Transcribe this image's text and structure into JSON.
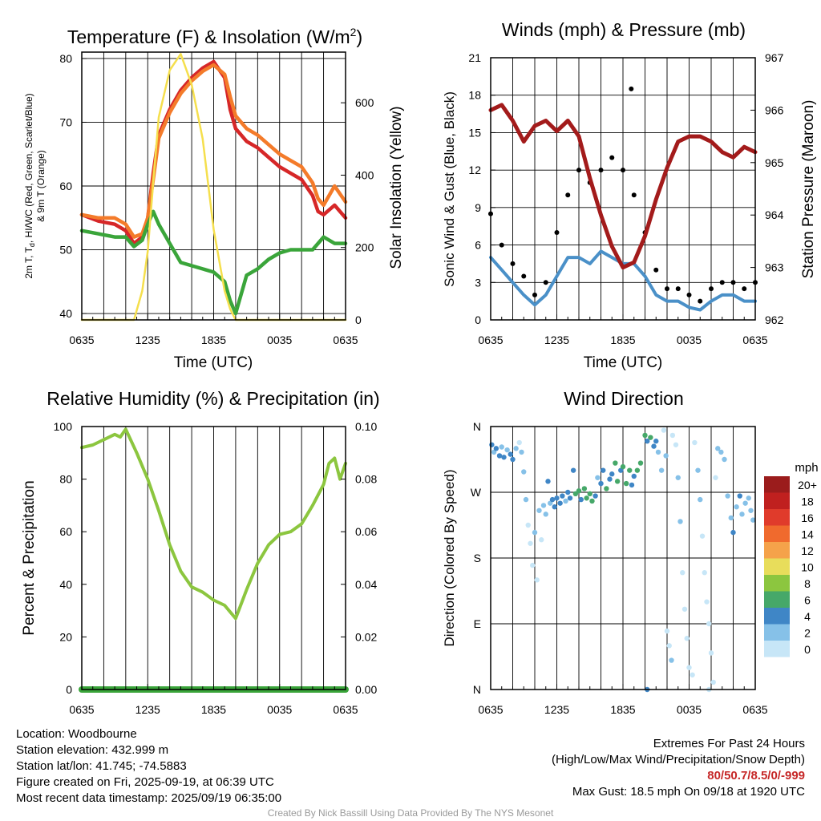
{
  "chart_data": [
    {
      "type": "line",
      "title": "Temperature (F) & Insolation (W/m²)",
      "xlabel": "Time (UTC)",
      "ylabel_left_line1": "2m T, T_d, HI/WC (Red, Green, Scarlet/Blue)",
      "ylabel_left_line2": "& 9m T (Orange)",
      "ylabel_right": "Solar Insolation (Yellow)",
      "x_ticks": [
        "0635",
        "1235",
        "1835",
        "0035",
        "0635"
      ],
      "ylim": [
        39,
        81
      ],
      "y_ticks": [
        40,
        50,
        60,
        70,
        80
      ],
      "y2lim": [
        0,
        740
      ],
      "y2_ticks": [
        0,
        200,
        400,
        600
      ],
      "x_hours": [
        0,
        1.5,
        3,
        4,
        4.75,
        5.5,
        6,
        6.5,
        7,
        8,
        9,
        10,
        11,
        12,
        13,
        13.5,
        14,
        15,
        16,
        17,
        18,
        19,
        20,
        21,
        21.5,
        22,
        23,
        24
      ],
      "series": [
        {
          "name": "2m T",
          "color": "#d62728",
          "values": [
            55.5,
            54.5,
            54,
            53,
            51,
            52,
            55,
            62,
            68,
            72,
            75,
            77,
            78.5,
            79.5,
            77,
            72,
            69,
            67,
            66,
            64.5,
            63,
            62,
            61,
            58.5,
            56,
            55.5,
            57,
            55
          ]
        },
        {
          "name": "9m T",
          "color": "#f47b2a",
          "values": [
            55.5,
            55,
            55,
            54,
            52,
            52.5,
            55,
            61,
            67.5,
            71.5,
            74.5,
            76.5,
            78,
            79,
            77.5,
            74,
            71,
            69,
            68,
            66.5,
            65,
            64,
            63,
            60.5,
            58,
            57,
            60,
            57.5
          ]
        },
        {
          "name": "T_d",
          "color": "#3aa53a",
          "values": [
            53,
            52.5,
            52,
            52,
            50.5,
            51.5,
            54,
            56,
            54,
            51,
            48,
            47.5,
            47,
            46.5,
            45,
            42,
            40,
            46,
            47,
            48.5,
            49.5,
            50,
            50,
            50,
            51,
            52,
            51,
            51
          ]
        },
        {
          "name": "Solar Insolation",
          "axis": "right",
          "color": "#f5df4d",
          "values": [
            0,
            0,
            0,
            0,
            0,
            80,
            190,
            380,
            560,
            690,
            735,
            650,
            500,
            250,
            80,
            30,
            0,
            0,
            0,
            0,
            0,
            0,
            0,
            0,
            0,
            0,
            0,
            0
          ]
        }
      ]
    },
    {
      "type": "line",
      "title": "Winds (mph) & Pressure (mb)",
      "xlabel": "Time (UTC)",
      "ylabel_left": "Sonic Wind & Gust (Blue, Black)",
      "ylabel_right": "Station Pressure (Maroon)",
      "x_ticks": [
        "0635",
        "1235",
        "1835",
        "0035",
        "0635"
      ],
      "ylim": [
        0,
        21
      ],
      "y_ticks": [
        0,
        3,
        6,
        9,
        12,
        15,
        18,
        21
      ],
      "y2lim": [
        962,
        967
      ],
      "y2_ticks": [
        962,
        963,
        964,
        965,
        966,
        967
      ],
      "x_hours": [
        0,
        1,
        2,
        3,
        4,
        5,
        6,
        7,
        8,
        9,
        10,
        11,
        12,
        13,
        14,
        15,
        16,
        17,
        18,
        19,
        20,
        21,
        22,
        23,
        24
      ],
      "series": [
        {
          "name": "Sonic Wind",
          "color": "#4a90c8",
          "values": [
            5,
            4,
            3,
            2,
            1.2,
            2,
            3.5,
            5,
            5,
            4.5,
            5.5,
            5,
            4.5,
            4.5,
            3.5,
            2,
            1.5,
            1.5,
            1,
            0.8,
            1.5,
            2,
            2,
            1.5,
            1.5
          ]
        },
        {
          "name": "Gust",
          "color": "#000000",
          "values": [
            8.5,
            6,
            4.5,
            3.5,
            2,
            3,
            7,
            10,
            12,
            11,
            12,
            13,
            12,
            10,
            7,
            4,
            2.5,
            2.5,
            2,
            1.5,
            2.5,
            3,
            3,
            2.5,
            3
          ]
        },
        {
          "name": "Station Pressure",
          "axis": "right",
          "color": "#a31b1b",
          "values": [
            966,
            966.1,
            965.8,
            965.4,
            965.7,
            965.8,
            965.6,
            965.8,
            965.5,
            964.7,
            964,
            963.4,
            963,
            963.1,
            963.6,
            964.3,
            964.9,
            965.4,
            965.5,
            965.5,
            965.4,
            965.2,
            965.1,
            965.3,
            965.2
          ]
        }
      ],
      "max_gust_point": {
        "hour": 12.75,
        "value": 18.5
      }
    },
    {
      "type": "line",
      "title": "Relative Humidity (%) & Precipitation (in)",
      "ylabel_left": "Percent & Precipitation",
      "x_ticks": [
        "0635",
        "1235",
        "1835",
        "0035",
        "0635"
      ],
      "ylim": [
        0,
        100
      ],
      "y_ticks": [
        0,
        20,
        40,
        60,
        80,
        100
      ],
      "y2lim": [
        0,
        0.1
      ],
      "y2_ticks": [
        "0.00",
        "0.02",
        "0.04",
        "0.06",
        "0.08",
        "0.10"
      ],
      "x_hours": [
        0,
        1,
        2,
        3,
        3.5,
        4,
        5,
        6,
        7,
        8,
        9,
        10,
        11,
        12,
        13,
        14,
        15,
        16,
        17,
        18,
        19,
        20,
        21,
        22,
        22.5,
        23,
        23.5,
        24
      ],
      "series": [
        {
          "name": "Relative Humidity",
          "color": "#8cc63f",
          "values": [
            92,
            93,
            95,
            97,
            96,
            99,
            90,
            80,
            68,
            55,
            45,
            39,
            37,
            34,
            32,
            27,
            38,
            48,
            55,
            59,
            60,
            63,
            70,
            78,
            86,
            88,
            80,
            86
          ]
        },
        {
          "name": "Precipitation",
          "color": "#3aa53a",
          "values": [
            0,
            0,
            0,
            0,
            0,
            0,
            0,
            0,
            0,
            0,
            0,
            0,
            0,
            0,
            0,
            0,
            0,
            0,
            0,
            0,
            0,
            0,
            0,
            0,
            0,
            0,
            0,
            0
          ]
        }
      ]
    },
    {
      "type": "scatter",
      "title": "Wind Direction",
      "ylabel_left": "Direction (Colored By Speed)",
      "x_ticks": [
        "0635",
        "1235",
        "1835",
        "0035",
        "0635"
      ],
      "y_ticks": [
        "N",
        "E",
        "S",
        "W",
        "N"
      ],
      "ylim_degrees": [
        0,
        360
      ],
      "legend_title": "mph",
      "legend_placement": "right",
      "legend": [
        {
          "label": "20+",
          "color": "#9b1c1c"
        },
        {
          "label": "18",
          "color": "#c0201f"
        },
        {
          "label": "16",
          "color": "#e03b2b"
        },
        {
          "label": "14",
          "color": "#f06a2d"
        },
        {
          "label": "12",
          "color": "#f5a24a"
        },
        {
          "label": "10",
          "color": "#e8dd5b"
        },
        {
          "label": "8",
          "color": "#8cc63f"
        },
        {
          "label": "6",
          "color": "#46a869"
        },
        {
          "label": "4",
          "color": "#3f86c6"
        },
        {
          "label": "2",
          "color": "#86c1e8"
        },
        {
          "label": "0",
          "color": "#c7e6f7"
        }
      ],
      "points": [
        {
          "hour": 0.1,
          "deg": 335,
          "speed": 4
        },
        {
          "hour": 0.3,
          "deg": 325,
          "speed": 3
        },
        {
          "hour": 0.5,
          "deg": 330,
          "speed": 5
        },
        {
          "hour": 0.8,
          "deg": 320,
          "speed": 4
        },
        {
          "hour": 1.0,
          "deg": 332,
          "speed": 2
        },
        {
          "hour": 1.2,
          "deg": 318,
          "speed": 4
        },
        {
          "hour": 1.5,
          "deg": 328,
          "speed": 3
        },
        {
          "hour": 1.8,
          "deg": 322,
          "speed": 5
        },
        {
          "hour": 2.0,
          "deg": 315,
          "speed": 4
        },
        {
          "hour": 2.3,
          "deg": 330,
          "speed": 2
        },
        {
          "hour": 2.6,
          "deg": 338,
          "speed": 1
        },
        {
          "hour": 2.8,
          "deg": 325,
          "speed": 2
        },
        {
          "hour": 3.0,
          "deg": 298,
          "speed": 2
        },
        {
          "hour": 3.2,
          "deg": 260,
          "speed": 3
        },
        {
          "hour": 3.4,
          "deg": 225,
          "speed": 1
        },
        {
          "hour": 3.6,
          "deg": 200,
          "speed": 1
        },
        {
          "hour": 3.8,
          "deg": 170,
          "speed": 1
        },
        {
          "hour": 4.0,
          "deg": 215,
          "speed": 2
        },
        {
          "hour": 4.2,
          "deg": 150,
          "speed": 1
        },
        {
          "hour": 4.4,
          "deg": 245,
          "speed": 2
        },
        {
          "hour": 4.6,
          "deg": 205,
          "speed": 1
        },
        {
          "hour": 4.8,
          "deg": 252,
          "speed": 3
        },
        {
          "hour": 5.0,
          "deg": 240,
          "speed": 2
        },
        {
          "hour": 5.2,
          "deg": 285,
          "speed": 4
        },
        {
          "hour": 5.4,
          "deg": 255,
          "speed": 3
        },
        {
          "hour": 5.6,
          "deg": 260,
          "speed": 4
        },
        {
          "hour": 5.8,
          "deg": 250,
          "speed": 4
        },
        {
          "hour": 6.0,
          "deg": 262,
          "speed": 4
        },
        {
          "hour": 6.3,
          "deg": 255,
          "speed": 5
        },
        {
          "hour": 6.5,
          "deg": 265,
          "speed": 4
        },
        {
          "hour": 6.8,
          "deg": 258,
          "speed": 3
        },
        {
          "hour": 7.0,
          "deg": 270,
          "speed": 5
        },
        {
          "hour": 7.2,
          "deg": 262,
          "speed": 4
        },
        {
          "hour": 7.5,
          "deg": 300,
          "speed": 4
        },
        {
          "hour": 7.7,
          "deg": 268,
          "speed": 6
        },
        {
          "hour": 8.0,
          "deg": 272,
          "speed": 6
        },
        {
          "hour": 8.2,
          "deg": 260,
          "speed": 5
        },
        {
          "hour": 8.5,
          "deg": 275,
          "speed": 7
        },
        {
          "hour": 8.7,
          "deg": 262,
          "speed": 6
        },
        {
          "hour": 9.0,
          "deg": 268,
          "speed": 7
        },
        {
          "hour": 9.2,
          "deg": 258,
          "speed": 6
        },
        {
          "hour": 9.5,
          "deg": 265,
          "speed": 5
        },
        {
          "hour": 9.7,
          "deg": 290,
          "speed": 3
        },
        {
          "hour": 10.0,
          "deg": 282,
          "speed": 4
        },
        {
          "hour": 10.2,
          "deg": 300,
          "speed": 4
        },
        {
          "hour": 10.5,
          "deg": 275,
          "speed": 6
        },
        {
          "hour": 10.8,
          "deg": 288,
          "speed": 4
        },
        {
          "hour": 11.0,
          "deg": 295,
          "speed": 5
        },
        {
          "hour": 11.3,
          "deg": 310,
          "speed": 6
        },
        {
          "hour": 11.5,
          "deg": 285,
          "speed": 7
        },
        {
          "hour": 11.8,
          "deg": 300,
          "speed": 5
        },
        {
          "hour": 12.0,
          "deg": 305,
          "speed": 6
        },
        {
          "hour": 12.3,
          "deg": 282,
          "speed": 6
        },
        {
          "hour": 12.6,
          "deg": 300,
          "speed": 7
        },
        {
          "hour": 12.8,
          "deg": 280,
          "speed": 5
        },
        {
          "hour": 13.0,
          "deg": 292,
          "speed": 4
        },
        {
          "hour": 13.3,
          "deg": 300,
          "speed": 6
        },
        {
          "hour": 13.6,
          "deg": 310,
          "speed": 6
        },
        {
          "hour": 14.0,
          "deg": 348,
          "speed": 6
        },
        {
          "hour": 14.2,
          "deg": 340,
          "speed": 4
        },
        {
          "hour": 14.5,
          "deg": 345,
          "speed": 7
        },
        {
          "hour": 14.8,
          "deg": 333,
          "speed": 5
        },
        {
          "hour": 15.0,
          "deg": 340,
          "speed": 4
        },
        {
          "hour": 15.2,
          "deg": 325,
          "speed": 3
        },
        {
          "hour": 15.5,
          "deg": 300,
          "speed": 2
        },
        {
          "hour": 15.7,
          "deg": 355,
          "speed": 1
        },
        {
          "hour": 15.9,
          "deg": 320,
          "speed": 2
        },
        {
          "hour": 16.0,
          "deg": 80,
          "speed": 1
        },
        {
          "hour": 16.2,
          "deg": 60,
          "speed": 1
        },
        {
          "hour": 16.4,
          "deg": 40,
          "speed": 2
        },
        {
          "hour": 16.5,
          "deg": 348,
          "speed": 1
        },
        {
          "hour": 16.8,
          "deg": 335,
          "speed": 1
        },
        {
          "hour": 17.0,
          "deg": 290,
          "speed": 2
        },
        {
          "hour": 17.2,
          "deg": 230,
          "speed": 2
        },
        {
          "hour": 17.4,
          "deg": 160,
          "speed": 1
        },
        {
          "hour": 17.6,
          "deg": 110,
          "speed": 1
        },
        {
          "hour": 17.8,
          "deg": 70,
          "speed": 1
        },
        {
          "hour": 18.0,
          "deg": 30,
          "speed": 1
        },
        {
          "hour": 18.3,
          "deg": 20,
          "speed": 1
        },
        {
          "hour": 18.5,
          "deg": 338,
          "speed": 1
        },
        {
          "hour": 18.8,
          "deg": 300,
          "speed": 2
        },
        {
          "hour": 19.0,
          "deg": 260,
          "speed": 2
        },
        {
          "hour": 19.2,
          "deg": 210,
          "speed": 1
        },
        {
          "hour": 19.4,
          "deg": 160,
          "speed": 1
        },
        {
          "hour": 19.6,
          "deg": 120,
          "speed": 1
        },
        {
          "hour": 19.8,
          "deg": 90,
          "speed": 1
        },
        {
          "hour": 20.0,
          "deg": 50,
          "speed": 1
        },
        {
          "hour": 20.2,
          "deg": 10,
          "speed": 1
        },
        {
          "hour": 20.4,
          "deg": 290,
          "speed": 1
        },
        {
          "hour": 20.6,
          "deg": 330,
          "speed": 2
        },
        {
          "hour": 20.9,
          "deg": 325,
          "speed": 3
        },
        {
          "hour": 21.2,
          "deg": 315,
          "speed": 2
        },
        {
          "hour": 21.5,
          "deg": 265,
          "speed": 2
        },
        {
          "hour": 21.8,
          "deg": 235,
          "speed": 3
        },
        {
          "hour": 22.0,
          "deg": 215,
          "speed": 4
        },
        {
          "hour": 22.3,
          "deg": 250,
          "speed": 3
        },
        {
          "hour": 22.6,
          "deg": 265,
          "speed": 4
        },
        {
          "hour": 22.8,
          "deg": 240,
          "speed": 2
        },
        {
          "hour": 23.1,
          "deg": 255,
          "speed": 3
        },
        {
          "hour": 23.4,
          "deg": 262,
          "speed": 2
        },
        {
          "hour": 23.6,
          "deg": 245,
          "speed": 3
        },
        {
          "hour": 23.8,
          "deg": 232,
          "speed": 2
        },
        {
          "hour": 14.2,
          "deg": 0,
          "speed": 4
        },
        {
          "hour": 19.8,
          "deg": 0,
          "speed": 1
        }
      ]
    }
  ],
  "info": {
    "location": "Location: Woodbourne",
    "elevation": "Station elevation: 432.999 m",
    "latlon": "Station lat/lon: 41.745; -74.5883",
    "created": "Figure created on Fri, 2025-09-19, at 06:39 UTC",
    "recent": "Most recent data timestamp: 2025/09/19 06:35:00"
  },
  "extremes": {
    "heading": "Extremes For Past 24 Hours",
    "subheading": "(High/Low/Max Wind/Precipitation/Snow Depth)",
    "values": "80/50.7/8.5/0/-999",
    "max_gust": "Max Gust: 18.5 mph On 09/18 at 1920 UTC"
  },
  "credit": "Created By Nick Bassill Using Data Provided By The NYS Mesonet"
}
